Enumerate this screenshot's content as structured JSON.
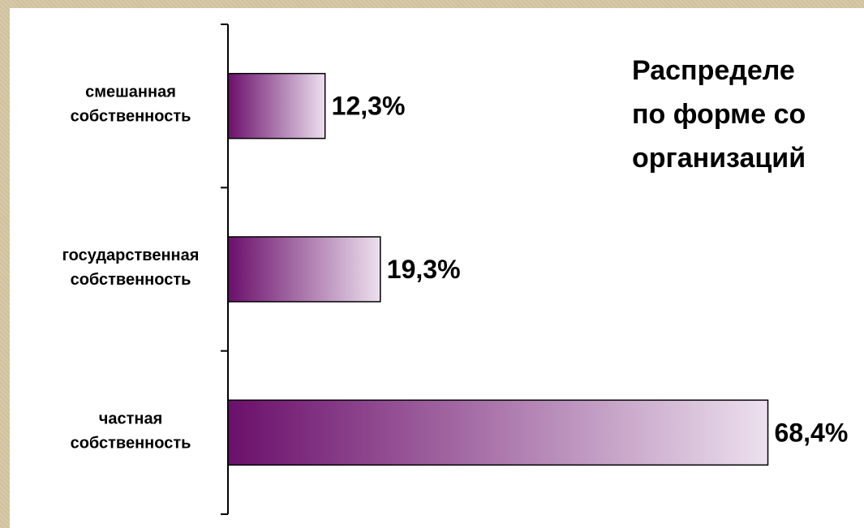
{
  "chart_data": {
    "type": "bar",
    "orientation": "horizontal",
    "title_lines": [
      "Распределе",
      "по форме со",
      "организаций"
    ],
    "categories": [
      [
        "смешанная",
        "собственность"
      ],
      [
        "государственная",
        "собственность"
      ],
      [
        "частная",
        "собственность"
      ]
    ],
    "values": [
      12.3,
      19.3,
      68.4
    ],
    "value_labels": [
      "12,3%",
      "19,3%",
      "68,4%"
    ],
    "xlim": [
      0,
      80
    ],
    "grid": false,
    "colors": {
      "bar_start": "#6b0f6b",
      "bar_end": "#ece0ee",
      "bar_stroke": "#000000"
    }
  }
}
